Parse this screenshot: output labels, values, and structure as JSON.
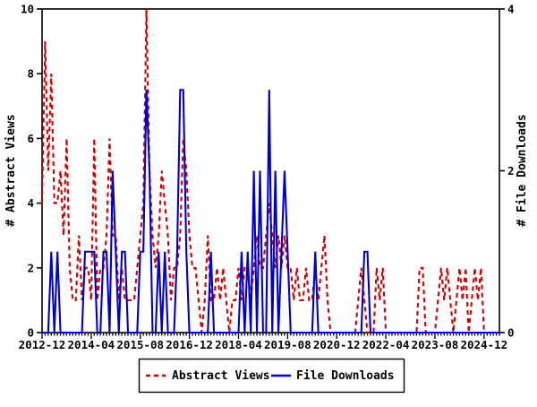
{
  "chart_data": {
    "type": "line",
    "title": "",
    "x_axis": {
      "unit": "month",
      "start": "2012-12",
      "end": "2025-05",
      "months_count": 150,
      "tick_labels": [
        "2012-12",
        "2014-04",
        "2015-08",
        "2016-12",
        "2018-04",
        "2019-08",
        "2020-12",
        "2022-04",
        "2023-08",
        "2024-12"
      ],
      "tick_month_indices": [
        0,
        16,
        32,
        48,
        64,
        80,
        96,
        112,
        128,
        144
      ]
    },
    "y_left": {
      "label": "# Abstract Views",
      "min": 0,
      "max": 10,
      "ticks": [
        0,
        2,
        4,
        6,
        8,
        10
      ]
    },
    "y_right": {
      "label": "# File Downloads",
      "min": 0,
      "max": 4,
      "ticks": [
        0,
        2,
        4
      ]
    },
    "grid": false,
    "legend": {
      "position": "bottom-center",
      "border": true
    },
    "series": [
      {
        "name": "Abstract Views",
        "axis": "left",
        "color": "#cc0000",
        "style": "dashed",
        "values": [
          4,
          9,
          5,
          8,
          4,
          4,
          5,
          3,
          6,
          2,
          1,
          1,
          3,
          1,
          2,
          2,
          1,
          6,
          1,
          2,
          2,
          3,
          6,
          3,
          3,
          1,
          2,
          1,
          1,
          1,
          1,
          2,
          3,
          4,
          10,
          5,
          3,
          2,
          3,
          5,
          4,
          3,
          1,
          2,
          2,
          3,
          6,
          5,
          3,
          2,
          2,
          1,
          0,
          1,
          3,
          1,
          1,
          2,
          1,
          2,
          1,
          0,
          1,
          1,
          2,
          1,
          2,
          2,
          1,
          2,
          3,
          2,
          2,
          3,
          4,
          3,
          2,
          3,
          2,
          3,
          2,
          2,
          1,
          2,
          1,
          1,
          2,
          1,
          1,
          2,
          1,
          2,
          3,
          1,
          0,
          0,
          0,
          0,
          0,
          0,
          0,
          0,
          0,
          1,
          2,
          1,
          0,
          0,
          0,
          2,
          1,
          2,
          0,
          0,
          0,
          0,
          0,
          0,
          0,
          0,
          0,
          0,
          0,
          2,
          2,
          0,
          0,
          0,
          0,
          1,
          2,
          1,
          2,
          1,
          0,
          1,
          2,
          1,
          2,
          0,
          1,
          2,
          1,
          2,
          0,
          0,
          0,
          0,
          0,
          0
        ]
      },
      {
        "name": "File Downloads",
        "axis": "right",
        "color": "#0000cc",
        "style": "solid",
        "values": [
          0,
          0,
          0,
          1,
          0,
          1,
          0,
          0,
          0,
          0,
          0,
          0,
          0,
          0,
          1,
          1,
          1,
          1,
          0,
          0,
          1,
          1,
          0,
          2,
          1,
          0,
          1,
          1,
          0,
          0,
          0,
          0,
          1,
          1,
          3,
          2,
          0,
          0,
          1,
          0,
          1,
          0,
          0,
          0,
          1,
          3,
          3,
          1,
          0,
          0,
          0,
          0,
          0,
          0,
          0,
          1,
          0,
          0,
          0,
          0,
          0,
          0,
          0,
          0,
          0,
          1,
          0,
          1,
          0,
          2,
          0,
          2,
          0,
          0,
          3,
          0,
          2,
          0,
          1,
          2,
          1,
          0,
          0,
          0,
          0,
          0,
          0,
          0,
          0,
          1,
          0,
          0,
          0,
          0,
          0,
          0,
          0,
          0,
          0,
          0,
          0,
          0,
          0,
          0,
          0,
          1,
          1,
          0,
          0,
          0,
          0,
          0,
          0,
          0,
          0,
          0,
          0,
          0,
          0,
          0,
          0,
          0,
          0,
          0,
          0,
          0,
          0,
          0,
          0,
          0,
          0,
          0,
          0,
          0,
          0,
          0,
          0,
          0,
          0,
          0,
          0,
          0,
          0,
          0,
          0,
          0,
          0,
          0,
          0,
          0
        ]
      }
    ],
    "colors": {
      "border": "#000000",
      "background": "#ffffff",
      "abstract_views": "#cc0000",
      "file_downloads": "#0000cc"
    }
  }
}
